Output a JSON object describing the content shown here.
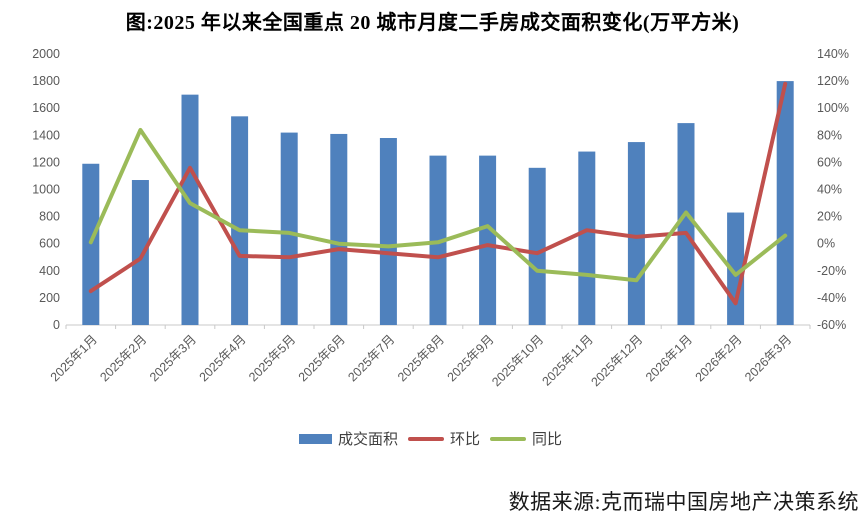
{
  "title": "图:2025 年以来全国重点 20 城市月度二手房成交面积变化(万平方米)",
  "source": "数据来源:克而瑞中国房地产决策系统",
  "legend": [
    {
      "label": "成交面积",
      "type": "bar",
      "color": "#4F81BD"
    },
    {
      "label": "环比",
      "type": "line",
      "color": "#C0504D"
    },
    {
      "label": "同比",
      "type": "line",
      "color": "#9BBB59"
    }
  ],
  "colors": {
    "bar_blue": "#4F81BD",
    "line_red": "#C0504D",
    "line_green": "#9BBB59",
    "axis_text": "#595959",
    "axis_line": "#C9C9C9"
  },
  "chart_data": {
    "type": "bar",
    "subtype": "bar-with-lines-dual-axis",
    "title": "图:2025 年以来全国重点 20 城市月度二手房成交面积变化(万平方米)",
    "categories": [
      "2025年1月",
      "2025年2月",
      "2025年3月",
      "2025年4月",
      "2025年5月",
      "2025年6月",
      "2025年7月",
      "2025年8月",
      "2025年9月",
      "2025年10月",
      "2025年11月",
      "2025年12月",
      "2026年1月",
      "2026年2月",
      "2026年3月"
    ],
    "series": [
      {
        "name": "成交面积",
        "key": "area-bars",
        "type": "bar",
        "axis": "left",
        "color": "#4F81BD",
        "values": [
          1190,
          1070,
          1700,
          1540,
          1420,
          1410,
          1380,
          1250,
          1250,
          1160,
          1280,
          1350,
          1490,
          830,
          1800
        ]
      },
      {
        "name": "环比",
        "key": "mom-line",
        "type": "line",
        "axis": "right",
        "color": "#C0504D",
        "values": [
          -35,
          -11,
          56,
          -9,
          -10,
          -4,
          -7,
          -10,
          -1,
          -7,
          10,
          5,
          8,
          -44,
          118
        ]
      },
      {
        "name": "同比",
        "key": "yoy-line",
        "type": "line",
        "axis": "right",
        "color": "#9BBB59",
        "values": [
          1,
          84,
          30,
          10,
          8,
          0,
          -2,
          1,
          13,
          -20,
          -23,
          -27,
          23,
          -23,
          6
        ]
      }
    ],
    "left_axis": {
      "min": 0,
      "max": 2000,
      "step": 200,
      "ticks": [
        "0",
        "200",
        "400",
        "600",
        "800",
        "1000",
        "1200",
        "1400",
        "1600",
        "1800",
        "2000"
      ]
    },
    "right_axis": {
      "min": -60,
      "max": 140,
      "step": 20,
      "ticks": [
        "-60%",
        "-40%",
        "-20%",
        "0%",
        "20%",
        "40%",
        "60%",
        "80%",
        "100%",
        "120%",
        "140%"
      ]
    },
    "grid": false,
    "legend_position": "bottom",
    "xlabel": "",
    "ylabel": ""
  }
}
